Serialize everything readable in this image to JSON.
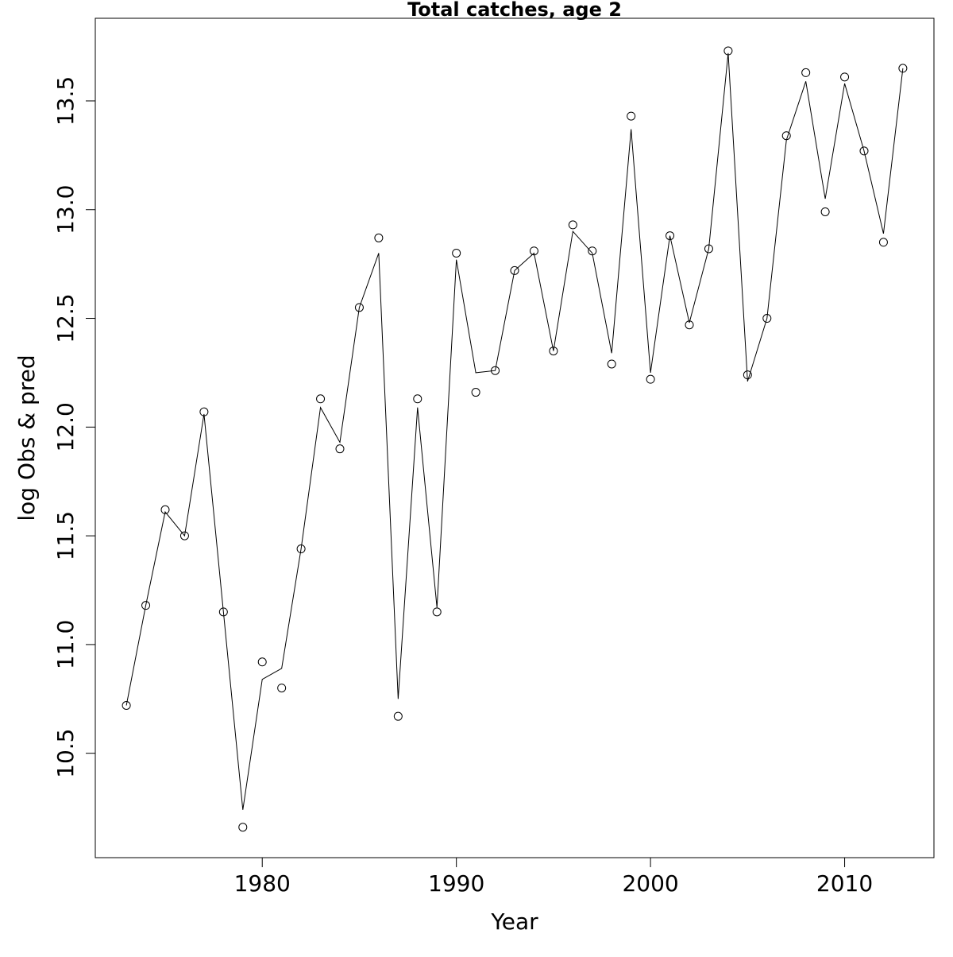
{
  "chart_data": {
    "type": "line",
    "title": "Total catches, age 2",
    "xlabel": "Year",
    "ylabel": "log Obs & pred",
    "x": [
      1973,
      1974,
      1975,
      1976,
      1977,
      1978,
      1979,
      1980,
      1981,
      1982,
      1983,
      1984,
      1985,
      1986,
      1987,
      1988,
      1989,
      1990,
      1991,
      1992,
      1993,
      1994,
      1995,
      1996,
      1997,
      1998,
      1999,
      2000,
      2001,
      2002,
      2003,
      2004,
      2005,
      2006,
      2007,
      2008,
      2009,
      2010,
      2011,
      2012,
      2013
    ],
    "series": [
      {
        "mode": "markers",
        "color": "#000000",
        "values": [
          10.72,
          11.18,
          11.62,
          11.5,
          12.07,
          11.15,
          10.16,
          10.92,
          10.8,
          11.44,
          12.13,
          11.9,
          12.55,
          12.87,
          10.67,
          12.13,
          11.15,
          12.8,
          12.16,
          12.26,
          12.72,
          12.81,
          12.35,
          12.93,
          12.81,
          12.29,
          13.43,
          12.22,
          12.88,
          12.47,
          12.82,
          13.73,
          12.24,
          12.5,
          13.34,
          13.63,
          12.99,
          13.61,
          13.27,
          12.85,
          13.65
        ]
      },
      {
        "mode": "lines",
        "color": "#000000",
        "values": [
          10.72,
          11.18,
          11.61,
          11.5,
          12.06,
          11.15,
          10.24,
          10.84,
          10.89,
          11.44,
          12.09,
          11.93,
          12.55,
          12.8,
          10.75,
          12.09,
          11.17,
          12.77,
          12.25,
          12.26,
          12.72,
          12.8,
          12.35,
          12.9,
          12.8,
          12.34,
          13.37,
          12.25,
          12.88,
          12.48,
          12.82,
          13.72,
          12.21,
          12.5,
          13.32,
          13.59,
          13.05,
          13.58,
          13.27,
          12.89,
          13.65
        ]
      }
    ],
    "xlim": [
      1971.4,
      2014.6
    ],
    "ylim": [
      10.02,
      13.88
    ],
    "xticks": [
      1980,
      1990,
      2000,
      2010
    ],
    "yticks": [
      10.5,
      {
        "value": 11,
        "label": "11.0"
      },
      11.5,
      {
        "value": 12,
        "label": "12.0"
      },
      12.5,
      {
        "value": 13,
        "label": "13.0"
      },
      13.5
    ]
  }
}
